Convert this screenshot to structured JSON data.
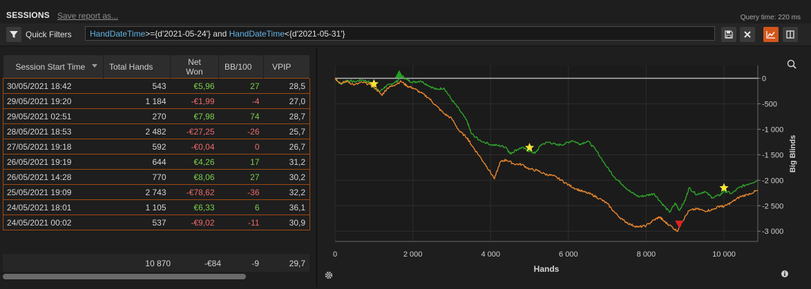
{
  "header": {
    "title": "SESSIONS",
    "save_link": "Save report as...",
    "query_time": "Query time: 220 ms"
  },
  "filter": {
    "label": "Quick Filters",
    "query_parts": [
      "HandDateTime",
      ">={d'2021-05-24'} and ",
      "HandDateTime",
      "<{d'2021-05-31'}"
    ]
  },
  "table": {
    "columns": [
      "Session Start Time",
      "Total Hands",
      "Net\nWon",
      "BB/100",
      "VPIP"
    ],
    "rows": [
      {
        "start": "30/05/2021 18:42",
        "hands": "543",
        "net": "€5,96",
        "bb": "27",
        "vpip": "28,5",
        "sign": "pos"
      },
      {
        "start": "29/05/2021 19:20",
        "hands": "1 184",
        "net": "-€1,99",
        "bb": "-4",
        "vpip": "27,0",
        "sign": "neg"
      },
      {
        "start": "29/05/2021 02:51",
        "hands": "270",
        "net": "€7,98",
        "bb": "74",
        "vpip": "28,7",
        "sign": "pos"
      },
      {
        "start": "28/05/2021 18:53",
        "hands": "2 482",
        "net": "-€27,25",
        "bb": "-26",
        "vpip": "25,7",
        "sign": "neg"
      },
      {
        "start": "27/05/2021 19:18",
        "hands": "592",
        "net": "-€0,04",
        "bb": "0",
        "vpip": "26,7",
        "sign": "neg"
      },
      {
        "start": "26/05/2021 19:19",
        "hands": "644",
        "net": "€4,26",
        "bb": "17",
        "vpip": "31,2",
        "sign": "pos"
      },
      {
        "start": "26/05/2021 14:28",
        "hands": "770",
        "net": "€8,06",
        "bb": "27",
        "vpip": "30,2",
        "sign": "pos"
      },
      {
        "start": "25/05/2021 19:09",
        "hands": "2 743",
        "net": "-€78,62",
        "bb": "-36",
        "vpip": "32,2",
        "sign": "neg"
      },
      {
        "start": "24/05/2021 18:01",
        "hands": "1 105",
        "net": "€6,33",
        "bb": "6",
        "vpip": "36,1",
        "sign": "pos"
      },
      {
        "start": "24/05/2021 00:02",
        "hands": "537",
        "net": "-€9,02",
        "bb": "-11",
        "vpip": "30,9",
        "sign": "neg"
      }
    ],
    "totals": {
      "hands": "10 870",
      "net": "-€84",
      "bb": "-9",
      "vpip": "29,7"
    }
  },
  "colors": {
    "accent": "#d2561c",
    "positive": "#7bd04c",
    "negative": "#ee6a6a",
    "row_border": "#a04a12",
    "green_series": "#2fa52a",
    "orange_series": "#e8862e"
  },
  "icons": {
    "filter": "funnel-icon",
    "save": "floppy-icon",
    "clear": "close-icon",
    "graph_toggle": "line-chart-icon",
    "split": "panel-split-icon",
    "zoom": "magnifier-icon",
    "settings": "gear-icon",
    "info": "info-icon"
  },
  "chart_data": {
    "type": "line",
    "xlabel": "Hands",
    "ylabel": "Big Blinds",
    "xlim": [
      0,
      10870
    ],
    "ylim": [
      -3200,
      250
    ],
    "x_ticks": [
      0,
      2000,
      4000,
      6000,
      8000,
      10000
    ],
    "x_tick_labels": [
      "0",
      "2 000",
      "4 000",
      "6 000",
      "8 000",
      "10 000"
    ],
    "y_ticks": [
      0,
      -500,
      -1000,
      -1500,
      -2000,
      -2500,
      -3000
    ],
    "y_tick_labels": [
      "0",
      "-500",
      "-1 000",
      "-1 500",
      "-2 000",
      "-2 500",
      "-3 000"
    ],
    "series": [
      {
        "color": "#2fa52a",
        "points": [
          [
            0,
            0
          ],
          [
            150,
            -120
          ],
          [
            300,
            -40
          ],
          [
            500,
            -70
          ],
          [
            700,
            -30
          ],
          [
            900,
            -80
          ],
          [
            1000,
            -180
          ],
          [
            1150,
            -260
          ],
          [
            1300,
            -160
          ],
          [
            1450,
            -110
          ],
          [
            1600,
            -60
          ],
          [
            1700,
            60
          ],
          [
            1850,
            -30
          ],
          [
            2000,
            -80
          ],
          [
            2200,
            -50
          ],
          [
            2400,
            -140
          ],
          [
            2600,
            -220
          ],
          [
            2800,
            -190
          ],
          [
            3000,
            -420
          ],
          [
            3200,
            -620
          ],
          [
            3400,
            -850
          ],
          [
            3500,
            -1080
          ],
          [
            3700,
            -1210
          ],
          [
            4000,
            -1300
          ],
          [
            4200,
            -1320
          ],
          [
            4400,
            -1350
          ],
          [
            4500,
            -1480
          ],
          [
            4650,
            -1410
          ],
          [
            4800,
            -1360
          ],
          [
            5000,
            -1430
          ],
          [
            5150,
            -1470
          ],
          [
            5300,
            -1300
          ],
          [
            5500,
            -1250
          ],
          [
            5700,
            -1310
          ],
          [
            5900,
            -1290
          ],
          [
            6100,
            -1220
          ],
          [
            6300,
            -1290
          ],
          [
            6500,
            -1230
          ],
          [
            6700,
            -1400
          ],
          [
            7000,
            -1750
          ],
          [
            7200,
            -1950
          ],
          [
            7400,
            -2090
          ],
          [
            7600,
            -2230
          ],
          [
            7800,
            -2320
          ],
          [
            8000,
            -2300
          ],
          [
            8200,
            -2260
          ],
          [
            8400,
            -2450
          ],
          [
            8600,
            -2630
          ],
          [
            8750,
            -2450
          ],
          [
            8850,
            -2590
          ],
          [
            9000,
            -2400
          ],
          [
            9100,
            -2150
          ],
          [
            9300,
            -2280
          ],
          [
            9500,
            -2220
          ],
          [
            9700,
            -2340
          ],
          [
            9900,
            -2290
          ],
          [
            10000,
            -2210
          ],
          [
            10200,
            -2260
          ],
          [
            10400,
            -2140
          ],
          [
            10600,
            -2080
          ],
          [
            10870,
            -2000
          ]
        ]
      },
      {
        "color": "#e8862e",
        "points": [
          [
            0,
            0
          ],
          [
            150,
            -100
          ],
          [
            300,
            -60
          ],
          [
            500,
            -130
          ],
          [
            700,
            -80
          ],
          [
            900,
            -120
          ],
          [
            1050,
            -200
          ],
          [
            1200,
            -330
          ],
          [
            1350,
            -190
          ],
          [
            1500,
            -140
          ],
          [
            1700,
            -60
          ],
          [
            1850,
            -150
          ],
          [
            2000,
            -190
          ],
          [
            2200,
            -280
          ],
          [
            2400,
            -380
          ],
          [
            2600,
            -540
          ],
          [
            2800,
            -690
          ],
          [
            3000,
            -790
          ],
          [
            3200,
            -1040
          ],
          [
            3400,
            -1170
          ],
          [
            3500,
            -1300
          ],
          [
            3700,
            -1510
          ],
          [
            3900,
            -1730
          ],
          [
            4100,
            -1970
          ],
          [
            4250,
            -1640
          ],
          [
            4400,
            -1600
          ],
          [
            4600,
            -1680
          ],
          [
            4800,
            -1690
          ],
          [
            5000,
            -1780
          ],
          [
            5200,
            -1810
          ],
          [
            5400,
            -1880
          ],
          [
            5600,
            -1910
          ],
          [
            5800,
            -1990
          ],
          [
            6000,
            -2090
          ],
          [
            6200,
            -2170
          ],
          [
            6400,
            -2230
          ],
          [
            6600,
            -2280
          ],
          [
            6800,
            -2360
          ],
          [
            7000,
            -2460
          ],
          [
            7200,
            -2640
          ],
          [
            7400,
            -2780
          ],
          [
            7600,
            -2870
          ],
          [
            7800,
            -2920
          ],
          [
            8000,
            -2890
          ],
          [
            8200,
            -2780
          ],
          [
            8350,
            -2720
          ],
          [
            8450,
            -2800
          ],
          [
            8600,
            -2880
          ],
          [
            8800,
            -3000
          ],
          [
            8900,
            -2840
          ],
          [
            9100,
            -2600
          ],
          [
            9300,
            -2560
          ],
          [
            9500,
            -2600
          ],
          [
            9700,
            -2580
          ],
          [
            9900,
            -2500
          ],
          [
            10000,
            -2520
          ],
          [
            10200,
            -2430
          ],
          [
            10400,
            -2330
          ],
          [
            10600,
            -2280
          ],
          [
            10870,
            -2200
          ]
        ]
      }
    ],
    "markers": [
      {
        "type": "star",
        "x": 1000,
        "y": -110,
        "color": "#f5e53a"
      },
      {
        "type": "star",
        "x": 5000,
        "y": -1360,
        "color": "#f5e53a"
      },
      {
        "type": "star",
        "x": 10000,
        "y": -2150,
        "color": "#f5e53a"
      },
      {
        "type": "triangle-up",
        "x": 1650,
        "y": 80,
        "color": "#23a022"
      },
      {
        "type": "triangle-down",
        "x": 8850,
        "y": -2860,
        "color": "#e02222"
      }
    ],
    "zero_line": true,
    "grid": true
  }
}
